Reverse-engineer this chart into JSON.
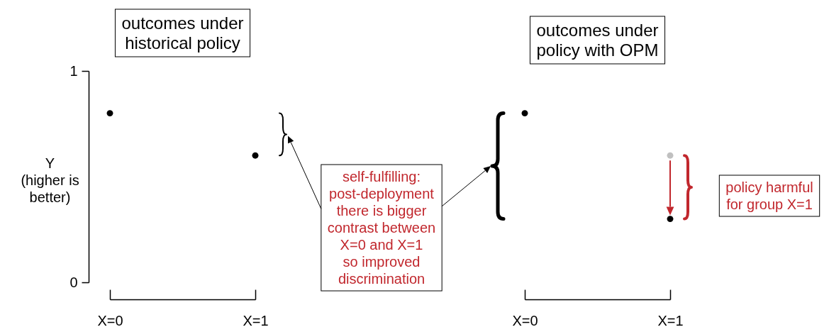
{
  "chart_data": [
    {
      "type": "scatter",
      "title": "outcomes under\nhistorical policy",
      "ylabel": "Y\n(higher is\nbetter)",
      "categories": [
        "X=0",
        "X=1"
      ],
      "series": [
        {
          "color": "#000000",
          "values": [
            0.8,
            0.6
          ]
        }
      ],
      "ylim": [
        0,
        1
      ],
      "yticks": [
        0,
        1
      ],
      "marker": "circle"
    },
    {
      "type": "scatter",
      "title": "outcomes under\npolicy with OPM",
      "categories": [
        "X=0",
        "X=1"
      ],
      "series": [
        {
          "color": "#c0c0c0",
          "values": [
            null,
            0.6
          ]
        },
        {
          "color": "#000000",
          "values": [
            0.8,
            0.3
          ]
        }
      ],
      "ylim": [
        0,
        1
      ],
      "tick_labels": "x",
      "marker": "circle",
      "annotations": [
        "self-fulfilling:\npost-deployment\nthere is bigger\ncontrast between\nX=0 and X=1\nso improved\ndiscrimination",
        "policy harmful\nfor group X=1"
      ]
    }
  ]
}
